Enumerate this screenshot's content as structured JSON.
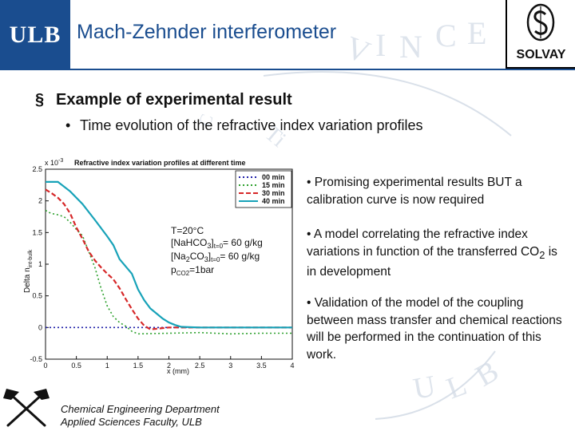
{
  "header": {
    "logo_text": "ULB",
    "title": "Mach-Zehnder interferometer",
    "partner_logo_text": "SOLVAY"
  },
  "bullets": {
    "level1_marker": "§",
    "level1": "Example of experimental result",
    "level2_marker": "•",
    "level2": "Time evolution of the refractive index variation profiles"
  },
  "right_column": {
    "p1": "• Promising experimental results BUT a calibration curve is now required",
    "p2_before": "• A model correlating the refractive index variations in function of the transferred CO",
    "p2_sub": "2",
    "p2_after": " is in development",
    "p3": "• Validation of the model of the coupling between mass transfer and chemical reactions will be performed in the continuation of this work."
  },
  "footer": {
    "line1": "Chemical Engineering Department",
    "line2": "Applied Sciences Faculty, ULB"
  },
  "colors": {
    "brand_blue": "#1a4d8f",
    "series": [
      "#1f1fa8",
      "#2ca02c",
      "#d62728",
      "#17a2b8"
    ]
  },
  "chart_data": {
    "type": "line",
    "title": "Refractive index variation profiles at different time",
    "xlabel": "x (mm)",
    "ylabel": "Delta n",
    "ylabel_sub": "int-bulk",
    "multiplier": "x 10",
    "multiplier_exp": "-3",
    "xlim": [
      0,
      4
    ],
    "ylim": [
      -0.5,
      2.5
    ],
    "xticks": [
      "0",
      "0.5",
      "1",
      "1.5",
      "2",
      "2.5",
      "3",
      "3.5",
      "4"
    ],
    "yticks": [
      "-0.5",
      "0",
      "0.5",
      "1",
      "1.5",
      "2",
      "2.5"
    ],
    "legend_position": "top-right",
    "annotation": {
      "temp": "T=20°C",
      "l2_a": "[NaHCO",
      "l2_b": "3",
      "l2_c": "]",
      "l2_d": "t=0",
      "l2_e": "= 60 g/kg",
      "l3_a": "[Na",
      "l3_b": "2",
      "l3_c": "CO",
      "l3_d": "3",
      "l3_e": "]",
      "l3_f": "t=0",
      "l3_g": "= 60 g/kg",
      "l4_a": "p",
      "l4_b": "CO2",
      "l4_c": "=1bar"
    },
    "series": [
      {
        "name": "00 min",
        "dash": "dot",
        "x": [
          0,
          0.5,
          1,
          1.5,
          2,
          2.5,
          3,
          3.5,
          4
        ],
        "y": [
          0,
          0,
          0,
          0,
          0,
          0,
          0,
          0,
          0
        ]
      },
      {
        "name": "15 min",
        "dash": "dot",
        "x": [
          0,
          0.05,
          0.1,
          0.2,
          0.3,
          0.4,
          0.5,
          0.6,
          0.7,
          0.8,
          0.9,
          1.0,
          1.1,
          1.2,
          1.3,
          1.4,
          1.5,
          2,
          2.5,
          3,
          3.5,
          4
        ],
        "y": [
          1.85,
          1.82,
          1.8,
          1.78,
          1.75,
          1.66,
          1.55,
          1.45,
          1.2,
          0.95,
          0.62,
          0.34,
          0.17,
          0.08,
          0.02,
          -0.06,
          -0.1,
          -0.09,
          -0.08,
          -0.1,
          -0.09,
          -0.09
        ]
      },
      {
        "name": "30 min",
        "dash": "dash",
        "x": [
          0,
          0.1,
          0.2,
          0.3,
          0.4,
          0.5,
          0.6,
          0.7,
          0.8,
          0.9,
          1.0,
          1.1,
          1.2,
          1.3,
          1.4,
          1.5,
          1.6,
          1.7,
          1.8,
          2,
          2.5,
          3,
          3.5,
          4
        ],
        "y": [
          2.18,
          2.12,
          2.05,
          1.95,
          1.8,
          1.58,
          1.4,
          1.2,
          1.06,
          0.95,
          0.85,
          0.76,
          0.62,
          0.45,
          0.29,
          0.14,
          0.03,
          -0.03,
          -0.02,
          0.0,
          0.0,
          0.0,
          0.0,
          0.0
        ]
      },
      {
        "name": "40 min",
        "dash": "solid",
        "x": [
          0,
          0.2,
          0.4,
          0.6,
          0.8,
          1.0,
          1.1,
          1.2,
          1.4,
          1.5,
          1.6,
          1.7,
          1.8,
          1.9,
          2.0,
          2.1,
          2.2,
          2.5,
          3,
          3.5,
          4
        ],
        "y": [
          2.3,
          2.3,
          2.15,
          1.95,
          1.7,
          1.44,
          1.3,
          1.08,
          0.85,
          0.6,
          0.43,
          0.3,
          0.22,
          0.14,
          0.08,
          0.04,
          0.01,
          0.0,
          0.0,
          0.0,
          0.0
        ]
      }
    ]
  }
}
